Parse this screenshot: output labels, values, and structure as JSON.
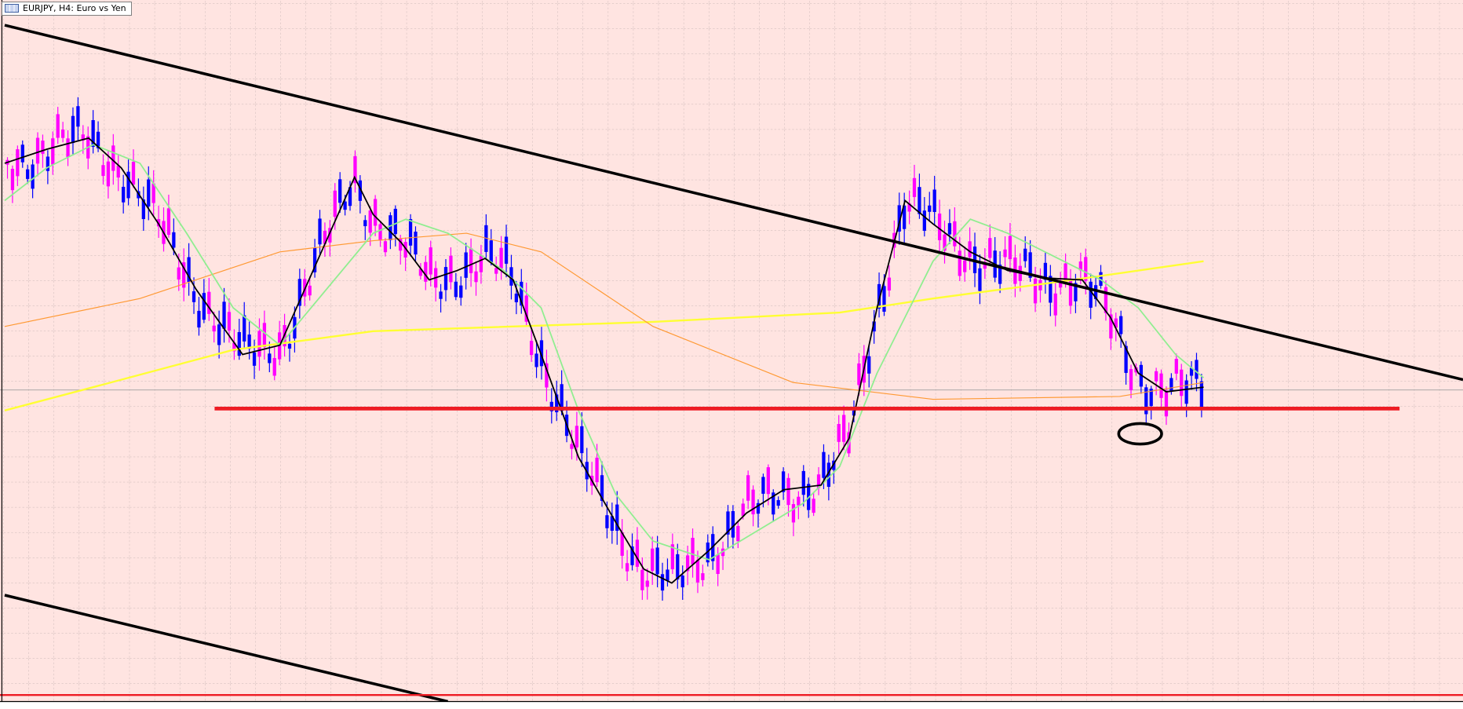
{
  "window": {
    "title": "EURJPY, H4:  Euro vs Yen"
  }
}
